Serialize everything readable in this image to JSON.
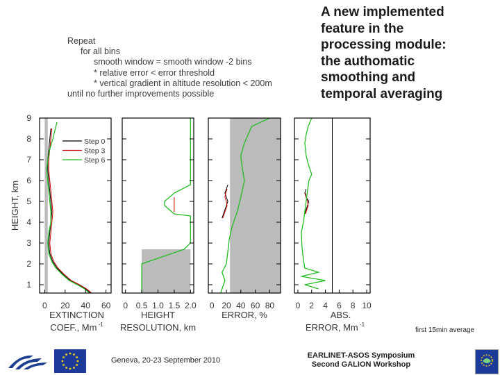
{
  "algorithm": {
    "lines": [
      "Repeat",
      "for all bins",
      "smooth window = smooth window -2 bins",
      "* relative error < error threshold",
      "* vertical gradient in altitude resolution < 200m",
      "until no further improvements possible"
    ]
  },
  "headline": {
    "lines": [
      "A new implemented",
      "feature in the",
      "processing module:",
      "the authomatic",
      "smoothing and",
      "temporal averaging"
    ]
  },
  "footer": {
    "date": "Geneva, 20-23 September 2010",
    "conf_line1": "EARLINET-ASOS Symposium",
    "conf_line2": "Second GALION Workshop",
    "note": "first 15min average"
  },
  "colors": {
    "step0": "#000000",
    "step3": "#cc0000",
    "step6": "#22bb22",
    "shade": "#bbbbbb"
  },
  "chart_data": [
    {
      "type": "line",
      "ylabel": "HEIGHT, km",
      "yticks": [
        "1",
        "2",
        "3",
        "4",
        "5",
        "6",
        "7",
        "8",
        "9"
      ],
      "ylim": [
        0.6,
        9
      ],
      "xlabel_line1": "EXTINCTION",
      "xlabel_line2": "COEF., Mm",
      "xlabel_sup": "-1",
      "xticks": [
        "0",
        "20",
        "40",
        "60"
      ],
      "xlim": [
        -5,
        65
      ],
      "legend": [
        "Step 0",
        "Step 3",
        "Step 6"
      ],
      "legend_position": "top-right",
      "shaded": {
        "x0": 0,
        "x1": 3,
        "y0": 0.6,
        "y1": 9
      },
      "series": [
        {
          "name": "Step 0",
          "x": [
            45,
            40,
            33,
            25,
            18,
            12,
            8,
            5,
            4,
            5,
            6,
            7,
            6,
            5,
            4,
            3,
            3,
            4,
            5,
            6
          ],
          "y": [
            0.6,
            0.8,
            1.0,
            1.2,
            1.5,
            1.8,
            2.1,
            2.5,
            3.0,
            3.5,
            4.0,
            4.5,
            5.0,
            5.5,
            6.0,
            6.5,
            7.0,
            7.5,
            8.0,
            8.5
          ]
        },
        {
          "name": "Step 3",
          "x": [
            46,
            41,
            34,
            26,
            19,
            13,
            9,
            6,
            5,
            6,
            7,
            8,
            7,
            6,
            5,
            4,
            4,
            5,
            6,
            7
          ],
          "y": [
            0.6,
            0.8,
            1.0,
            1.2,
            1.5,
            1.8,
            2.1,
            2.5,
            3.0,
            3.5,
            4.0,
            4.5,
            5.0,
            5.5,
            6.0,
            6.5,
            7.0,
            7.5,
            8.0,
            8.5
          ]
        },
        {
          "name": "Step 6",
          "x": [
            44,
            39,
            32,
            24,
            17,
            11,
            7,
            4,
            3,
            4,
            6,
            6,
            5,
            4,
            3,
            2,
            3,
            5,
            8,
            12
          ],
          "y": [
            0.6,
            0.8,
            1.0,
            1.2,
            1.5,
            1.8,
            2.1,
            2.5,
            3.0,
            3.5,
            4.0,
            4.5,
            5.0,
            5.5,
            6.0,
            6.5,
            7.0,
            7.5,
            8.0,
            8.8
          ]
        }
      ]
    },
    {
      "type": "line",
      "xlabel_line1": "HEIGHT",
      "xlabel_line2": "RESOLUTION, km",
      "xticks": [
        "0",
        "0.5",
        "1.0",
        "1.5",
        "2.0"
      ],
      "xlim": [
        -0.1,
        2.1
      ],
      "ylim": [
        0.6,
        9
      ],
      "shaded": {
        "x0": 0.5,
        "x1": 2.0,
        "y0": 0.6,
        "y1": 2.7
      },
      "series": [
        {
          "name": "Step 0",
          "x": [
            0.5,
            0.5,
            0.5
          ],
          "y": [
            0.6,
            1.0,
            1.4
          ]
        },
        {
          "name": "Step 3",
          "x": [
            1.5,
            1.5
          ],
          "y": [
            4.5,
            5.2
          ]
        },
        {
          "name": "Step 6",
          "x": [
            0.5,
            0.5,
            1.8,
            2.0,
            2.0,
            1.5,
            1.2,
            1.2,
            1.5,
            2.0,
            2.0,
            2.0
          ],
          "y": [
            0.6,
            2.0,
            2.7,
            3.0,
            4.3,
            4.4,
            4.8,
            5.0,
            5.4,
            5.8,
            8.0,
            9.0
          ]
        }
      ]
    },
    {
      "type": "line",
      "xlabel_line1": "ERROR, %",
      "xticks": [
        "0",
        "20",
        "40",
        "60",
        "80"
      ],
      "xlim": [
        -5,
        95
      ],
      "ylim": [
        0.6,
        9
      ],
      "shaded": {
        "x0": 25,
        "x1": 95,
        "y0": 0.6,
        "y1": 9
      },
      "series": [
        {
          "name": "Step 0",
          "x": [
            14,
            16,
            18,
            20,
            22,
            20,
            18,
            20,
            22
          ],
          "y": [
            4.2,
            4.4,
            4.6,
            4.8,
            5.0,
            5.2,
            5.4,
            5.6,
            5.8
          ]
        },
        {
          "name": "Step 3",
          "x": [
            15,
            17,
            19,
            21,
            20,
            18,
            19,
            21
          ],
          "y": [
            4.2,
            4.4,
            4.6,
            4.8,
            5.0,
            5.2,
            5.4,
            5.6
          ]
        },
        {
          "name": "Step 6",
          "x": [
            12,
            18,
            14,
            20,
            22,
            24,
            28,
            35,
            40,
            45,
            42,
            40,
            45,
            50,
            55,
            80
          ],
          "y": [
            0.6,
            1.2,
            1.6,
            2.0,
            2.6,
            3.2,
            3.8,
            4.5,
            5.2,
            6.0,
            6.6,
            7.2,
            7.8,
            8.2,
            8.6,
            9.0
          ]
        }
      ]
    },
    {
      "type": "line",
      "xlabel_line1": "ABS.",
      "xlabel_line2": "ERROR, Mm",
      "xlabel_sup": "-1",
      "xticks": [
        "0",
        "2",
        "4",
        "6",
        "8",
        "10"
      ],
      "xlim": [
        -0.5,
        10.5
      ],
      "ylim": [
        0.6,
        9
      ],
      "vline_x": 5,
      "series": [
        {
          "name": "Step 0",
          "x": [
            1.0,
            1.2,
            1.4,
            1.6,
            1.2,
            1.0,
            1.2
          ],
          "y": [
            4.4,
            4.6,
            4.8,
            5.0,
            5.2,
            5.4,
            5.6
          ]
        },
        {
          "name": "Step 3",
          "x": [
            1.1,
            1.3,
            1.5,
            1.4,
            1.2,
            1.1
          ],
          "y": [
            4.4,
            4.6,
            4.8,
            5.0,
            5.2,
            5.4
          ]
        },
        {
          "name": "Step 6",
          "x": [
            3,
            1,
            4,
            0.5,
            3,
            1,
            0.8,
            0.6,
            0.5,
            0.8,
            1.0,
            1.2,
            1.4,
            1.6,
            2.0,
            1.5,
            1.2,
            1.0,
            1.2,
            1.5,
            2.0
          ],
          "y": [
            0.8,
            1.0,
            1.2,
            1.4,
            1.6,
            1.8,
            2.2,
            2.8,
            3.5,
            4.0,
            4.5,
            5.0,
            5.5,
            6.0,
            6.3,
            6.8,
            7.2,
            7.8,
            8.2,
            8.6,
            9.0
          ]
        }
      ]
    }
  ]
}
